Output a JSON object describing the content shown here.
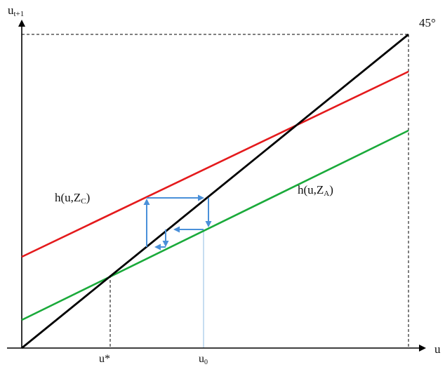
{
  "axes": {
    "y_label_main": "u",
    "y_label_sub": "t+1",
    "x_label": "u",
    "angle_label": "45°"
  },
  "curves": {
    "crisis": {
      "label_main": "h(u,Z",
      "label_sub": "C",
      "label_end": ")",
      "color": "#e41a1c"
    },
    "adjust": {
      "label_main": "h(u,Z",
      "label_sub": "A",
      "label_end": ")",
      "color": "#1aaa3a"
    },
    "diagonal": {
      "color": "#000000"
    }
  },
  "points": {
    "ustar_main": "u*",
    "u0_main": "u",
    "u0_sub": "0"
  },
  "path_color": "#4a90d9"
}
